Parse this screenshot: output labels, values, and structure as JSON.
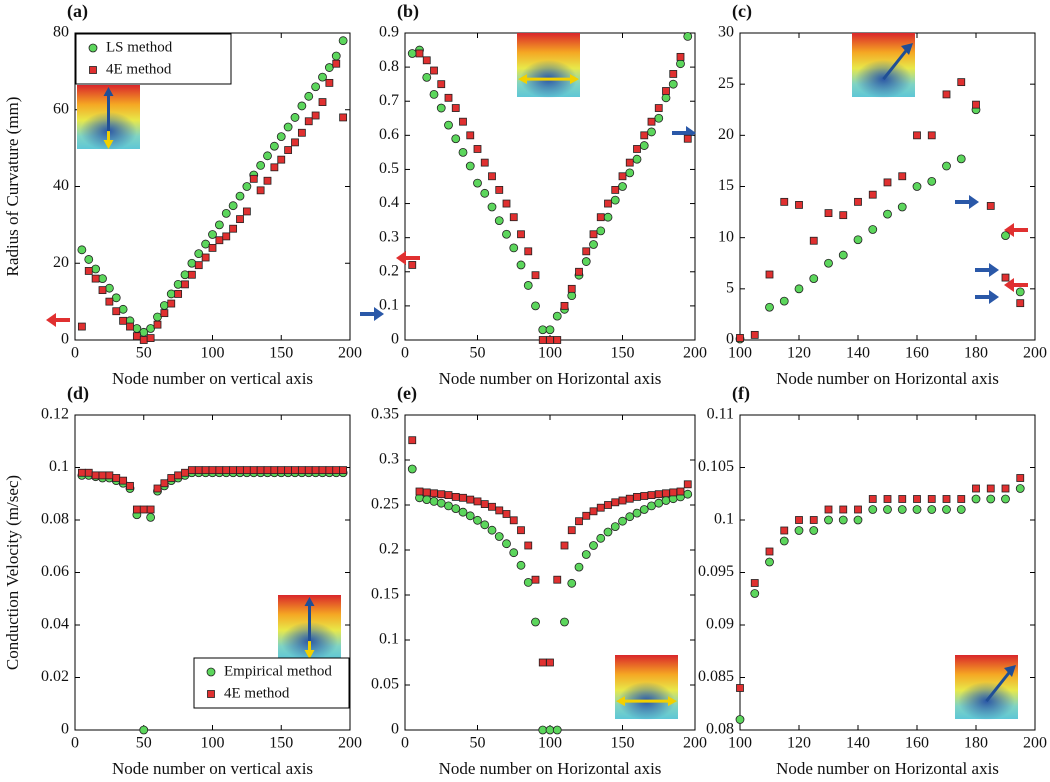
{
  "chart_data": [
    {
      "type": "scatter",
      "title": "(a)",
      "x_label": "Node number on vertical axis",
      "y_label": "Radius of Curvature (mm)",
      "xlim": [
        0,
        200
      ],
      "ylim": [
        0,
        80
      ],
      "xticks": [
        0,
        50,
        100,
        150,
        200
      ],
      "yticks": [
        0,
        20,
        40,
        60,
        80
      ],
      "legend": "upper left",
      "x": [
        5,
        10,
        15,
        20,
        25,
        30,
        35,
        40,
        45,
        50,
        55,
        60,
        65,
        70,
        75,
        80,
        85,
        90,
        95,
        100,
        105,
        110,
        115,
        120,
        125,
        130,
        135,
        140,
        145,
        150,
        155,
        160,
        165,
        170,
        175,
        180,
        185,
        190,
        195
      ],
      "series": [
        {
          "name": "LS method",
          "color": "#5cd65c",
          "marker": "circle",
          "values": [
            23.5,
            21,
            18.5,
            16,
            13.5,
            11,
            8,
            5,
            3,
            2,
            3,
            6,
            9,
            12,
            14.5,
            17,
            20,
            22.5,
            25,
            27.5,
            30,
            33,
            35,
            37.5,
            40,
            43,
            45.5,
            48,
            50.5,
            53,
            55.5,
            58,
            61,
            63.5,
            66,
            68.5,
            71,
            74,
            78
          ]
        },
        {
          "name": "4E method",
          "color": "#e03030",
          "marker": "square",
          "values": [
            3.5,
            18,
            16,
            13,
            10,
            7.5,
            5,
            3.5,
            1,
            0,
            0.5,
            4,
            7,
            9.5,
            12,
            14.5,
            17,
            19.5,
            21.5,
            24,
            26,
            27,
            29,
            31.5,
            33.5,
            42,
            39,
            41.5,
            45,
            47,
            49.5,
            51.5,
            54,
            57,
            58.5,
            62,
            67,
            72,
            58
          ]
        }
      ]
    },
    {
      "type": "scatter",
      "title": "(b)",
      "x_label": "Node number on Horizontal axis",
      "xlim": [
        0,
        200
      ],
      "ylim": [
        0,
        0.9
      ],
      "xticks": [
        0,
        50,
        100,
        150,
        200
      ],
      "yticks": [
        0,
        0.1,
        0.2,
        0.3,
        0.4,
        0.5,
        0.6,
        0.7,
        0.8,
        0.9
      ],
      "x": [
        5,
        10,
        15,
        20,
        25,
        30,
        35,
        40,
        45,
        50,
        55,
        60,
        65,
        70,
        75,
        80,
        85,
        90,
        95,
        100,
        105,
        110,
        115,
        120,
        125,
        130,
        135,
        140,
        145,
        150,
        155,
        160,
        165,
        170,
        175,
        180,
        185,
        190,
        195
      ],
      "series": [
        {
          "color": "#5cd65c",
          "marker": "circle",
          "values": [
            0.84,
            0.85,
            0.77,
            0.72,
            0.68,
            0.63,
            0.59,
            0.55,
            0.51,
            0.46,
            0.43,
            0.39,
            0.35,
            0.31,
            0.27,
            0.22,
            0.16,
            0.1,
            0.03,
            0.03,
            0.07,
            0.09,
            0.13,
            0.19,
            0.23,
            0.28,
            0.32,
            0.36,
            0.41,
            0.45,
            0.49,
            0.53,
            0.57,
            0.61,
            0.65,
            0.71,
            0.75,
            0.81,
            0.89
          ]
        },
        {
          "color": "#e03030",
          "marker": "square",
          "values": [
            0.22,
            0.84,
            0.82,
            0.79,
            0.75,
            0.71,
            0.68,
            0.64,
            0.6,
            0.56,
            0.52,
            0.48,
            0.44,
            0.4,
            0.36,
            0.31,
            0.26,
            0.19,
            0,
            0,
            0,
            0.1,
            0.15,
            0.2,
            0.26,
            0.31,
            0.36,
            0.4,
            0.44,
            0.48,
            0.52,
            0.56,
            0.6,
            0.64,
            0.68,
            0.73,
            0.78,
            0.83,
            0.59
          ]
        }
      ]
    },
    {
      "type": "scatter",
      "title": "(c)",
      "x_label": "Node number on Horizontal axis",
      "xlim": [
        100,
        200
      ],
      "ylim": [
        0,
        30
      ],
      "xticks": [
        100,
        120,
        140,
        160,
        180,
        200
      ],
      "yticks": [
        0,
        5,
        10,
        15,
        20,
        25,
        30
      ],
      "x": [
        100,
        105,
        110,
        115,
        120,
        125,
        130,
        135,
        140,
        145,
        150,
        155,
        160,
        165,
        170,
        175,
        180,
        185,
        190,
        195
      ],
      "series": [
        {
          "color": "#5cd65c",
          "marker": "circle",
          "values": [
            0.1,
            null,
            3.2,
            3.8,
            5,
            6,
            7.5,
            8.3,
            9.8,
            10.8,
            12.3,
            13,
            15,
            15.5,
            17,
            17.7,
            22.5,
            null,
            10.2,
            4.7
          ]
        },
        {
          "color": "#e03030",
          "marker": "square",
          "values": [
            0.2,
            0.5,
            6.4,
            13.5,
            13.2,
            9.7,
            12.4,
            12.2,
            13.5,
            14.2,
            15.4,
            16,
            20,
            20,
            24,
            25.2,
            23,
            13.1,
            6.1,
            3.6
          ]
        }
      ]
    },
    {
      "type": "scatter",
      "title": "(d)",
      "x_label": "Node number on vertical axis",
      "y_label": "Conduction Velocity (m/sec)",
      "xlim": [
        0,
        200
      ],
      "ylim": [
        0,
        0.12
      ],
      "xticks": [
        0,
        50,
        100,
        150,
        200
      ],
      "yticks": [
        0,
        0.02,
        0.04,
        0.06,
        0.08,
        0.1,
        0.12
      ],
      "legend": "lower right",
      "x": [
        5,
        10,
        15,
        20,
        25,
        30,
        35,
        40,
        45,
        50,
        55,
        60,
        65,
        70,
        75,
        80,
        85,
        90,
        95,
        100,
        105,
        110,
        115,
        120,
        125,
        130,
        135,
        140,
        145,
        150,
        155,
        160,
        165,
        170,
        175,
        180,
        185,
        190,
        195
      ],
      "series": [
        {
          "name": "Empirical method",
          "color": "#5cd65c",
          "marker": "circle",
          "values": [
            0.097,
            0.097,
            0.0965,
            0.096,
            0.096,
            0.095,
            0.094,
            0.092,
            0.082,
            0,
            0.081,
            0.091,
            0.093,
            0.095,
            0.096,
            0.097,
            0.098,
            0.098,
            0.098,
            0.098,
            0.098,
            0.098,
            0.098,
            0.098,
            0.098,
            0.098,
            0.098,
            0.098,
            0.098,
            0.098,
            0.098,
            0.098,
            0.098,
            0.098,
            0.098,
            0.098,
            0.098,
            0.098,
            0.098
          ]
        },
        {
          "name": "4E method",
          "color": "#e03030",
          "marker": "square",
          "values": [
            0.098,
            0.098,
            0.097,
            0.097,
            0.097,
            0.096,
            0.095,
            0.093,
            0.084,
            0.084,
            0.084,
            0.092,
            0.094,
            0.096,
            0.097,
            0.098,
            0.099,
            0.099,
            0.099,
            0.099,
            0.099,
            0.099,
            0.099,
            0.099,
            0.099,
            0.099,
            0.099,
            0.099,
            0.099,
            0.099,
            0.099,
            0.099,
            0.099,
            0.099,
            0.099,
            0.099,
            0.099,
            0.099,
            0.099
          ]
        }
      ]
    },
    {
      "type": "scatter",
      "title": "(e)",
      "x_label": "Node number on Horizontal axis",
      "xlim": [
        0,
        200
      ],
      "ylim": [
        0,
        0.35
      ],
      "xticks": [
        0,
        50,
        100,
        150,
        200
      ],
      "yticks": [
        0,
        0.05,
        0.1,
        0.15,
        0.2,
        0.25,
        0.3,
        0.35
      ],
      "x": [
        5,
        10,
        15,
        20,
        25,
        30,
        35,
        40,
        45,
        50,
        55,
        60,
        65,
        70,
        75,
        80,
        85,
        90,
        95,
        100,
        105,
        110,
        115,
        120,
        125,
        130,
        135,
        140,
        145,
        150,
        155,
        160,
        165,
        170,
        175,
        180,
        185,
        190,
        195
      ],
      "series": [
        {
          "color": "#5cd65c",
          "marker": "circle",
          "values": [
            0.29,
            0.258,
            0.256,
            0.254,
            0.252,
            0.249,
            0.246,
            0.242,
            0.238,
            0.233,
            0.228,
            0.222,
            0.215,
            0.207,
            0.197,
            0.183,
            0.164,
            0.12,
            0,
            0,
            0,
            0.12,
            0.163,
            0.181,
            0.195,
            0.205,
            0.213,
            0.22,
            0.226,
            0.232,
            0.237,
            0.241,
            0.245,
            0.249,
            0.252,
            0.255,
            0.257,
            0.259,
            0.262
          ]
        },
        {
          "color": "#e03030",
          "marker": "square",
          "values": [
            0.322,
            0.265,
            0.264,
            0.263,
            0.262,
            0.261,
            0.259,
            0.258,
            0.256,
            0.254,
            0.251,
            0.248,
            0.244,
            0.24,
            0.233,
            0.222,
            0.205,
            0.167,
            0.075,
            0.075,
            0.167,
            0.205,
            0.222,
            0.232,
            0.238,
            0.243,
            0.247,
            0.25,
            0.253,
            0.255,
            0.257,
            0.259,
            0.26,
            0.261,
            0.262,
            0.263,
            0.264,
            0.265,
            0.273
          ]
        }
      ]
    },
    {
      "type": "scatter",
      "title": "(f)",
      "x_label": "Node number on Horizontal axis",
      "xlim": [
        100,
        200
      ],
      "ylim": [
        0.08,
        0.11
      ],
      "xticks": [
        100,
        120,
        140,
        160,
        180,
        200
      ],
      "yticks": [
        0.08,
        0.085,
        0.09,
        0.095,
        0.1,
        0.105,
        0.11
      ],
      "x": [
        100,
        105,
        110,
        115,
        120,
        125,
        130,
        135,
        140,
        145,
        150,
        155,
        160,
        165,
        170,
        175,
        180,
        185,
        190,
        195
      ],
      "series": [
        {
          "color": "#5cd65c",
          "marker": "circle",
          "values": [
            0.081,
            0.093,
            0.096,
            0.098,
            0.099,
            0.099,
            0.1,
            0.1,
            0.1,
            0.101,
            0.101,
            0.101,
            0.101,
            0.101,
            0.101,
            0.101,
            0.102,
            0.102,
            0.102,
            0.103
          ]
        },
        {
          "color": "#e03030",
          "marker": "square",
          "values": [
            0.084,
            0.094,
            0.097,
            0.099,
            0.1,
            0.1,
            0.101,
            0.101,
            0.101,
            0.102,
            0.102,
            0.102,
            0.102,
            0.102,
            0.102,
            0.102,
            0.103,
            0.103,
            0.103,
            0.104
          ]
        }
      ]
    }
  ]
}
